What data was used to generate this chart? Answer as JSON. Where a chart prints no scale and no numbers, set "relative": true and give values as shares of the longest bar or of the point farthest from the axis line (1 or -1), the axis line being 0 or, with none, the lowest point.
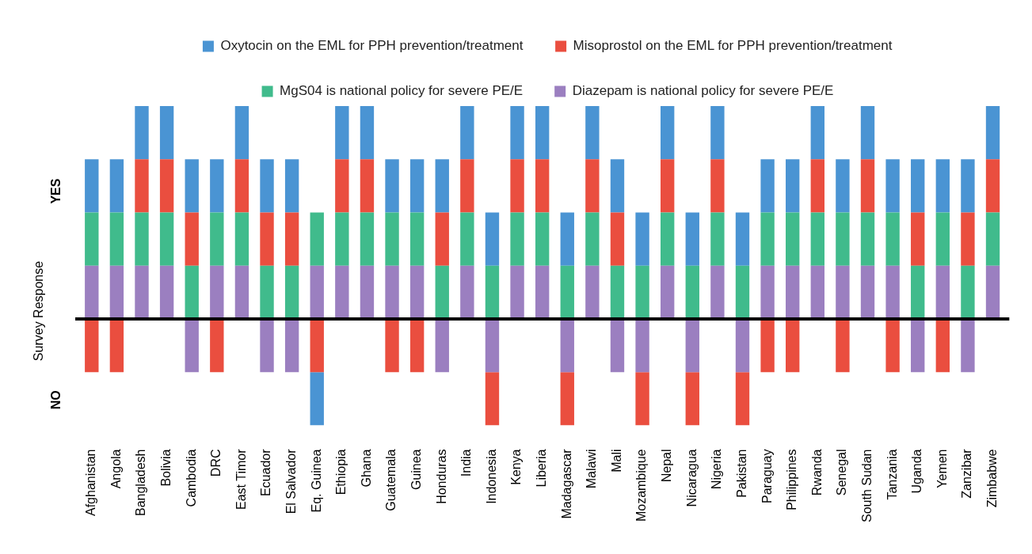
{
  "chart_data": {
    "type": "bar",
    "stacked": true,
    "relative": true,
    "ylabel": "Survey Response",
    "legend": "top",
    "grid": false,
    "annotations": [
      "YES",
      "NO"
    ],
    "categories": [
      "Afghanistan",
      "Angola",
      "Bangladesh",
      "Bolivia",
      "Cambodia",
      "DRC",
      "East Timor",
      "Ecuador",
      "El Salvador",
      "Eq. Guinea",
      "Ethiopia",
      "Ghana",
      "Guatemala",
      "Guinea",
      "Honduras",
      "India",
      "Indonesia",
      "Kenya",
      "Liberia",
      "Madagascar",
      "Malawi",
      "Mali",
      "Mozambique",
      "Nepal",
      "Nicaragua",
      "Nigeria",
      "Pakistan",
      "Paraguay",
      "Philippines",
      "Rwanda",
      "Senegal",
      "South Sudan",
      "Tanzania",
      "Uganda",
      "Yemen",
      "Zanzibar",
      "Zimbabwe"
    ],
    "series": [
      {
        "name": "Diazepam is national policy for severe PE/E",
        "color": "#9b7fc0",
        "values": [
          0.25,
          0.25,
          0.25,
          0.25,
          -0.25,
          0.25,
          0.25,
          -0.25,
          -0.25,
          0.25,
          0.25,
          0.25,
          0.25,
          0.25,
          -0.25,
          0.25,
          -0.25,
          0.25,
          0.25,
          -0.25,
          0.25,
          -0.25,
          -0.25,
          0.25,
          -0.25,
          0.25,
          -0.25,
          0.25,
          0.25,
          0.25,
          0.25,
          0.25,
          0.25,
          -0.25,
          0.25,
          -0.25,
          0.25
        ]
      },
      {
        "name": "MgS04 is national policy for severe PE/E",
        "color": "#40bb8c",
        "values": [
          0.25,
          0.25,
          0.25,
          0.25,
          0.25,
          0.25,
          0.25,
          0.25,
          0.25,
          0.25,
          0.25,
          0.25,
          0.25,
          0.25,
          0.25,
          0.25,
          0.25,
          0.25,
          0.25,
          0.25,
          0.25,
          0.25,
          0.25,
          0.25,
          0.25,
          0.25,
          0.25,
          0.25,
          0.25,
          0.25,
          0.25,
          0.25,
          0.25,
          0.25,
          0.25,
          0.25,
          0.25
        ]
      },
      {
        "name": "Misoprostol on the EML for PPH prevention/treatment",
        "color": "#ea4e3f",
        "values": [
          -0.25,
          -0.25,
          0.25,
          0.25,
          0.25,
          -0.25,
          0.25,
          0.25,
          0.25,
          -0.25,
          0.25,
          0.25,
          -0.25,
          -0.25,
          0.25,
          0.25,
          -0.25,
          0.25,
          0.25,
          -0.25,
          0.25,
          0.25,
          -0.25,
          0.25,
          -0.25,
          0.25,
          -0.25,
          -0.25,
          -0.25,
          0.25,
          -0.25,
          0.25,
          -0.25,
          0.25,
          -0.25,
          0.25,
          0.25
        ]
      },
      {
        "name": "Oxytocin on the EML for PPH prevention/treatment",
        "color": "#4a94d3",
        "values": [
          0.25,
          0.25,
          0.25,
          0.25,
          0.25,
          0.25,
          0.25,
          0.25,
          0.25,
          -0.25,
          0.25,
          0.25,
          0.25,
          0.25,
          0.25,
          0.25,
          0.25,
          0.25,
          0.25,
          0.25,
          0.25,
          0.25,
          0.25,
          0.25,
          0.25,
          0.25,
          0.25,
          0.25,
          0.25,
          0.25,
          0.25,
          0.25,
          0.25,
          0.25,
          0.25,
          0.25,
          0.25
        ]
      }
    ]
  }
}
